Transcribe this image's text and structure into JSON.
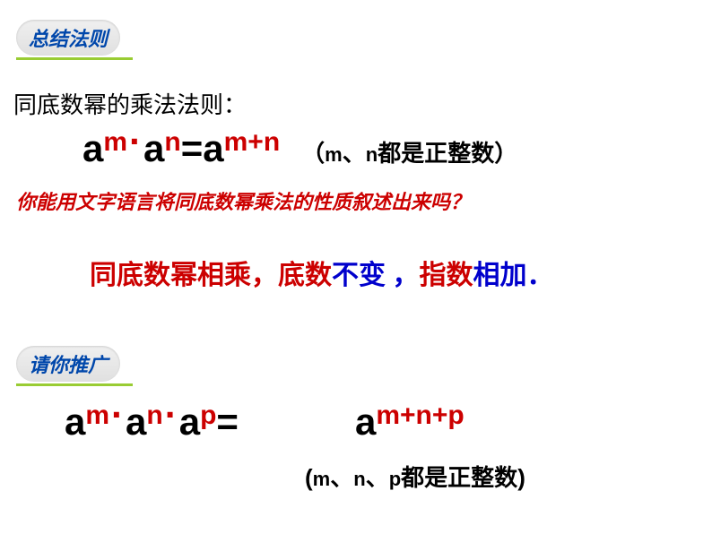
{
  "badge1": "总结法则",
  "rule_title": "同底数幂的乘法法则：",
  "formula1": {
    "a1": "a",
    "m": "m",
    "dot1": "·",
    "a2": "a",
    "n": "n",
    "eq": "=a",
    "mn": "m+n",
    "cond_open": "（",
    "cond_m": "m",
    "cond_sep1": "、",
    "cond_n": "n",
    "cond_text": "都是正整数）"
  },
  "question": "你能用文字语言将同底数幂乘法的性质叙述出来吗？",
  "statement": {
    "p1": "同底数幂相乘，底数",
    "p2": "不变 ，",
    "p3": "指数",
    "p4": "相加．"
  },
  "badge2": "请你推广",
  "formula2": {
    "a1": "a",
    "m": "m",
    "dot1": "·",
    "a2": "a",
    "n": "n",
    "dot2": "·",
    "a3": "a",
    "p": "p",
    "eq": "=",
    "ra": "a",
    "mnp": "m+n+p"
  },
  "condition2": {
    "open": "(",
    "m": "m",
    "sep1": "、",
    "n": "n",
    "sep2": "、",
    "p": "p",
    "text": "都是正整数",
    "close": ")"
  },
  "colors": {
    "red": "#cc0000",
    "blue": "#0000cc",
    "badge_text": "#0047ab",
    "underline": "#99cc33",
    "black": "#000000"
  }
}
